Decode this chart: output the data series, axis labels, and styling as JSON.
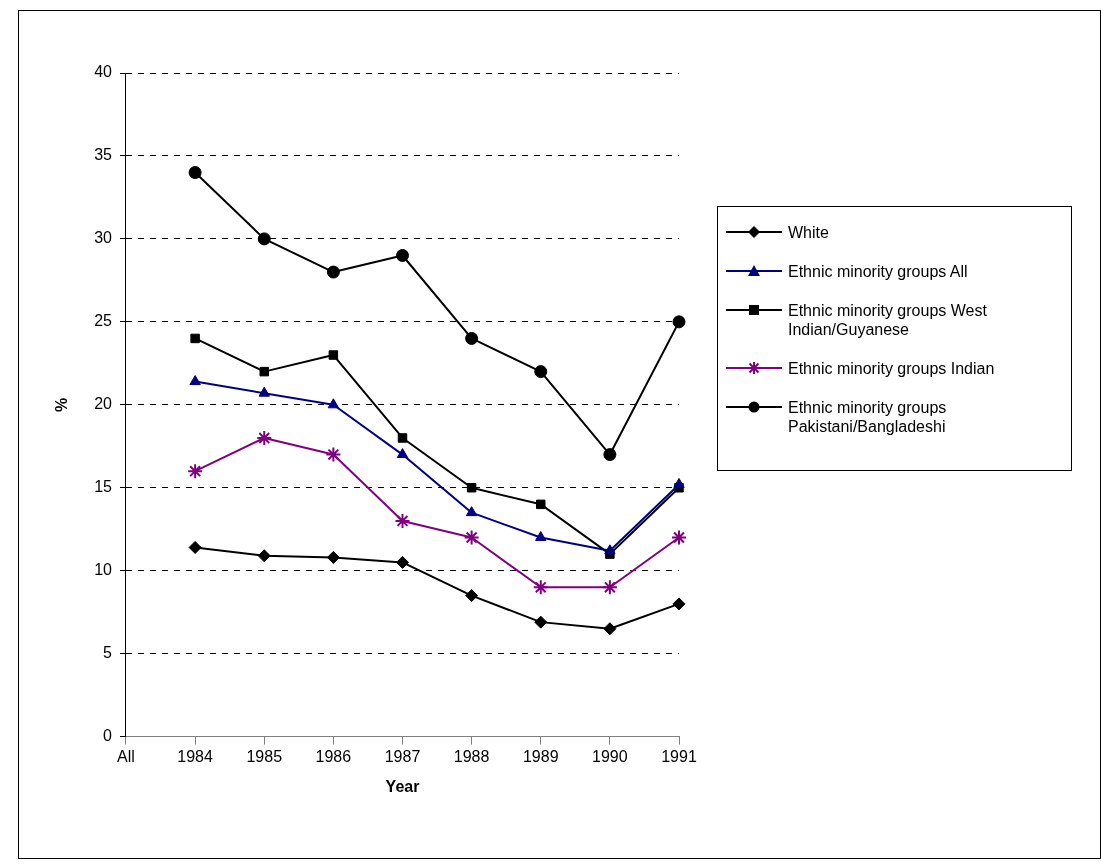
{
  "chart_data": {
    "type": "line",
    "xlabel": "Year",
    "ylabel": "%",
    "categories": [
      "All",
      "1984",
      "1985",
      "1986",
      "1987",
      "1988",
      "1989",
      "1990",
      "1991"
    ],
    "ylim": [
      0,
      40
    ],
    "yticks": [
      0,
      5,
      10,
      15,
      20,
      25,
      30,
      35,
      40
    ],
    "grid": "y",
    "legend": "right",
    "line_style": "solid",
    "series": [
      {
        "name": "White",
        "color": "#000000",
        "marker": "diamond",
        "values": [
          null,
          11.4,
          10.9,
          10.8,
          10.5,
          8.5,
          6.9,
          6.5,
          8.0
        ]
      },
      {
        "name": "Ethnic minority groups All",
        "color": "#000080",
        "marker": "triangle",
        "values": [
          null,
          21.4,
          20.7,
          20,
          17,
          13.5,
          12,
          11.2,
          15.2
        ]
      },
      {
        "name": "Ethnic minority groups West Indian/Guyanese",
        "color": "#000000",
        "marker": "square",
        "values": [
          null,
          24,
          22,
          23,
          18,
          15,
          14,
          11,
          15
        ]
      },
      {
        "name": "Ethnic minority groups Indian",
        "color": "#800080",
        "marker": "cross",
        "values": [
          null,
          16,
          18,
          17,
          13,
          12,
          9,
          9,
          12
        ]
      },
      {
        "name": "Ethnic minority groups Pakistani/Bangladeshi",
        "color": "#000000",
        "marker": "circle",
        "values": [
          null,
          34,
          30,
          28,
          29,
          24,
          22,
          17,
          25
        ]
      }
    ]
  }
}
